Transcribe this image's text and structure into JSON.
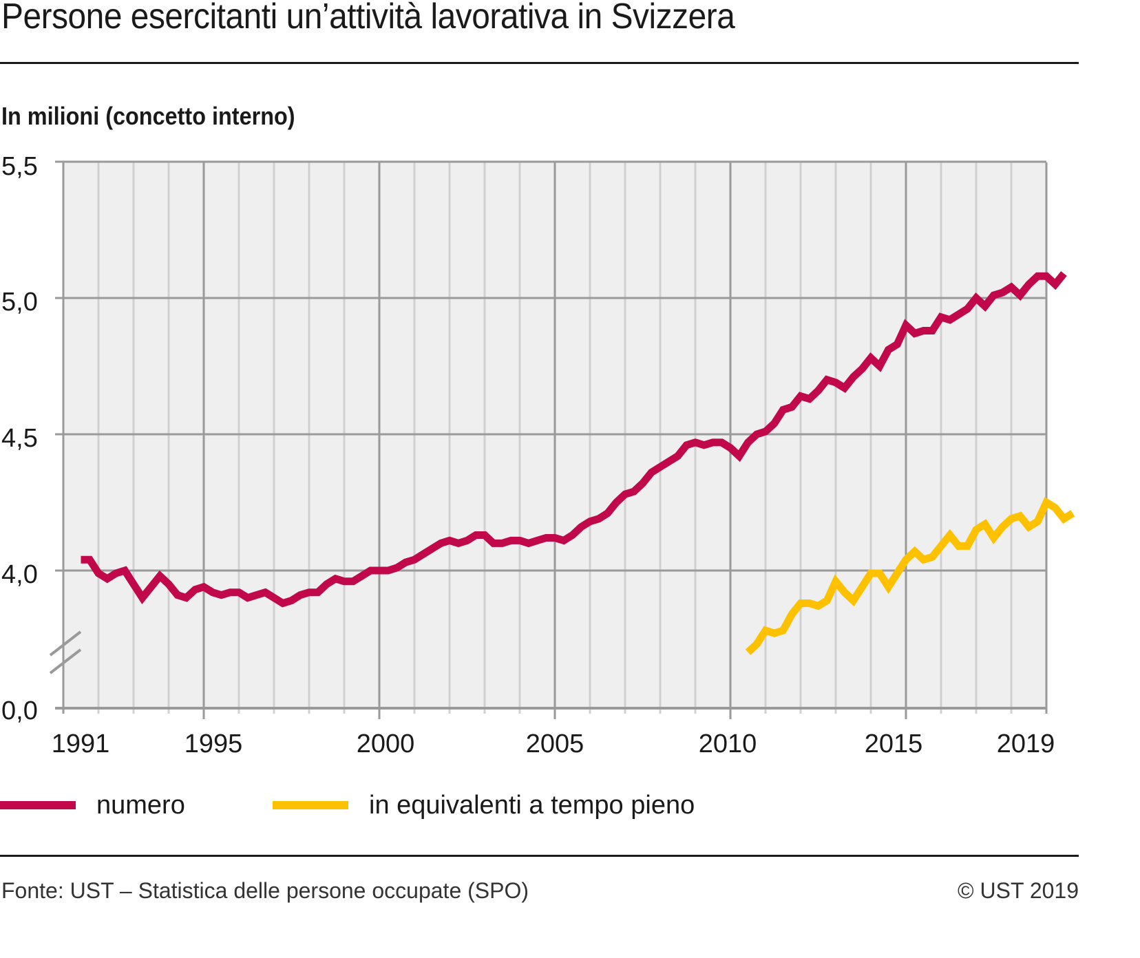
{
  "header": {
    "title": "Persone esercitanti un’attività lavorativa in Svizzera",
    "subtitle": "In milioni (concetto interno)"
  },
  "footer": {
    "source": "Fonte: UST – Statistica delle persone occupate (SPO)",
    "copyright": "© UST 2019"
  },
  "legend": [
    {
      "label": "numero",
      "color": "#c0084a"
    },
    {
      "label": "in equivalenti a tempo pieno",
      "color": "#fdc100"
    }
  ],
  "chart_data": {
    "type": "line",
    "title": "Persone esercitanti un’attività lavorativa in Svizzera",
    "subtitle": "In milioni (concetto interno)",
    "xlabel": "",
    "ylabel": "In milioni",
    "x_tick_labels": [
      "1991",
      "1995",
      "2000",
      "2005",
      "2010",
      "2015",
      "2019"
    ],
    "y_tick_labels": [
      "0,0",
      "4,0",
      "4,5",
      "5,0",
      "5,5"
    ],
    "y_axis_break": {
      "from": 0.0,
      "to": 3.7
    },
    "ylim": [
      3.7,
      5.5
    ],
    "xlim": [
      1991,
      2019
    ],
    "grid": true,
    "legend_position": "bottom",
    "frequency": "quarterly",
    "series": [
      {
        "name": "numero",
        "color": "#c0084a",
        "start": "1991Q1",
        "values": [
          4.04,
          4.04,
          3.99,
          3.97,
          3.99,
          4.0,
          3.95,
          3.9,
          3.94,
          3.98,
          3.95,
          3.91,
          3.9,
          3.93,
          3.94,
          3.92,
          3.91,
          3.92,
          3.92,
          3.9,
          3.91,
          3.92,
          3.9,
          3.88,
          3.89,
          3.91,
          3.92,
          3.92,
          3.95,
          3.97,
          3.96,
          3.96,
          3.98,
          4.0,
          4.0,
          4.0,
          4.01,
          4.03,
          4.04,
          4.06,
          4.08,
          4.1,
          4.11,
          4.1,
          4.11,
          4.13,
          4.13,
          4.1,
          4.1,
          4.11,
          4.11,
          4.1,
          4.11,
          4.12,
          4.12,
          4.11,
          4.13,
          4.16,
          4.18,
          4.19,
          4.21,
          4.25,
          4.28,
          4.29,
          4.32,
          4.36,
          4.38,
          4.4,
          4.42,
          4.46,
          4.47,
          4.46,
          4.47,
          4.47,
          4.45,
          4.42,
          4.47,
          4.5,
          4.51,
          4.54,
          4.59,
          4.6,
          4.64,
          4.63,
          4.66,
          4.7,
          4.69,
          4.67,
          4.71,
          4.74,
          4.78,
          4.75,
          4.81,
          4.83,
          4.9,
          4.87,
          4.88,
          4.88,
          4.93,
          4.92,
          4.94,
          4.96,
          5.0,
          4.97,
          5.01,
          5.02,
          5.04,
          5.01,
          5.05,
          5.08,
          5.08,
          5.05,
          5.09
        ]
      },
      {
        "name": "in equivalenti a tempo pieno",
        "color": "#fdc100",
        "start": "2010Q1",
        "values": [
          3.7,
          3.73,
          3.78,
          3.77,
          3.78,
          3.84,
          3.88,
          3.88,
          3.87,
          3.89,
          3.96,
          3.92,
          3.89,
          3.94,
          3.99,
          3.99,
          3.94,
          3.99,
          4.04,
          4.07,
          4.04,
          4.05,
          4.09,
          4.13,
          4.09,
          4.09,
          4.15,
          4.17,
          4.12,
          4.16,
          4.19,
          4.2,
          4.16,
          4.18,
          4.25,
          4.23,
          4.19,
          4.21
        ]
      }
    ]
  }
}
